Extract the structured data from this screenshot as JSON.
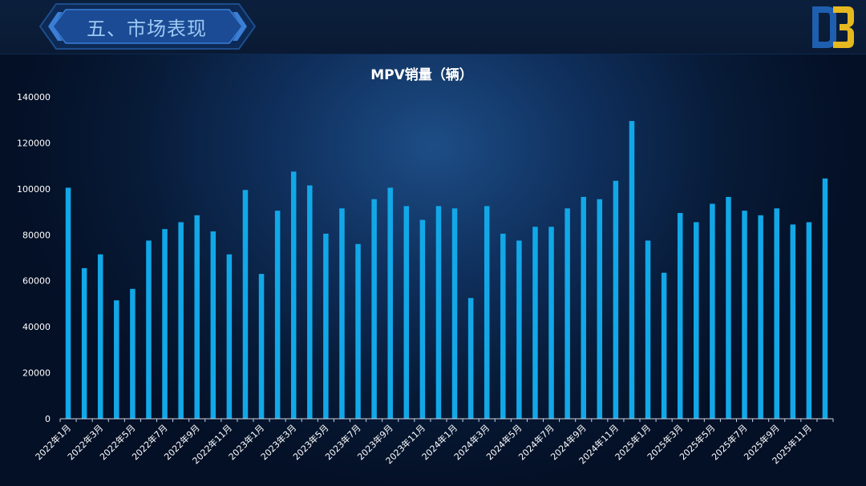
{
  "header": {
    "section_title": "五、市场表现"
  },
  "colors": {
    "bar": "#12a8e8",
    "axis_text": "#ffffff",
    "title_text": "#ffffff",
    "badge_fill": "#1d4f9a",
    "badge_border": "#2f6fc4",
    "logo_blue": "#1e5fb0",
    "logo_gold": "#e5b820"
  },
  "chart_data": {
    "type": "bar",
    "title": "MPV销量（辆）",
    "ylim": [
      0,
      140000
    ],
    "yticks": [
      0,
      20000,
      40000,
      60000,
      80000,
      100000,
      120000,
      140000
    ],
    "grid": false,
    "categories": [
      "2022年1月",
      "2022年2月",
      "2022年3月",
      "2022年4月",
      "2022年5月",
      "2022年6月",
      "2022年7月",
      "2022年8月",
      "2022年9月",
      "2022年10月",
      "2022年11月",
      "2022年12月",
      "2023年1月",
      "2023年2月",
      "2023年3月",
      "2023年4月",
      "2023年5月",
      "2023年6月",
      "2023年7月",
      "2023年8月",
      "2023年9月",
      "2023年10月",
      "2023年11月",
      "2023年12月",
      "2024年1月",
      "2024年2月",
      "2024年3月",
      "2024年4月",
      "2024年5月",
      "2024年6月",
      "2024年7月",
      "2024年8月",
      "2024年9月",
      "2024年10月",
      "2024年11月",
      "2024年12月",
      "2025年1月",
      "2025年2月",
      "2025年3月",
      "2025年4月",
      "2025年5月",
      "2025年6月",
      "2025年7月",
      "2025年8月",
      "2025年9月",
      "2025年10月",
      "2025年11月",
      "2025年12月"
    ],
    "visible_xtick_labels": [
      "2022年1月",
      "2022年3月",
      "2022年5月",
      "2022年7月",
      "2022年9月",
      "2022年11月",
      "2023年1月",
      "2023年3月",
      "2023年5月",
      "2023年7月",
      "2023年9月",
      "2023年11月",
      "2024年1月",
      "2024年3月",
      "2024年5月",
      "2024年7月",
      "2024年9月",
      "2024年11月",
      "2025年1月",
      "2025年3月",
      "2025年5月",
      "2025年7月",
      "2025年9月",
      "2025年11月"
    ],
    "values": [
      100500,
      65500,
      71500,
      51500,
      56500,
      77500,
      82500,
      85500,
      88500,
      81500,
      71500,
      99500,
      63000,
      90500,
      107500,
      101500,
      80500,
      91500,
      76000,
      95500,
      100500,
      92500,
      86500,
      92500,
      91500,
      52500,
      92500,
      80500,
      77500,
      83500,
      83500,
      91500,
      96500,
      95500,
      103500,
      129500,
      77500,
      63500,
      89500,
      85500,
      93500,
      96500,
      90500,
      88500,
      91500,
      84500,
      85500,
      104500
    ]
  }
}
